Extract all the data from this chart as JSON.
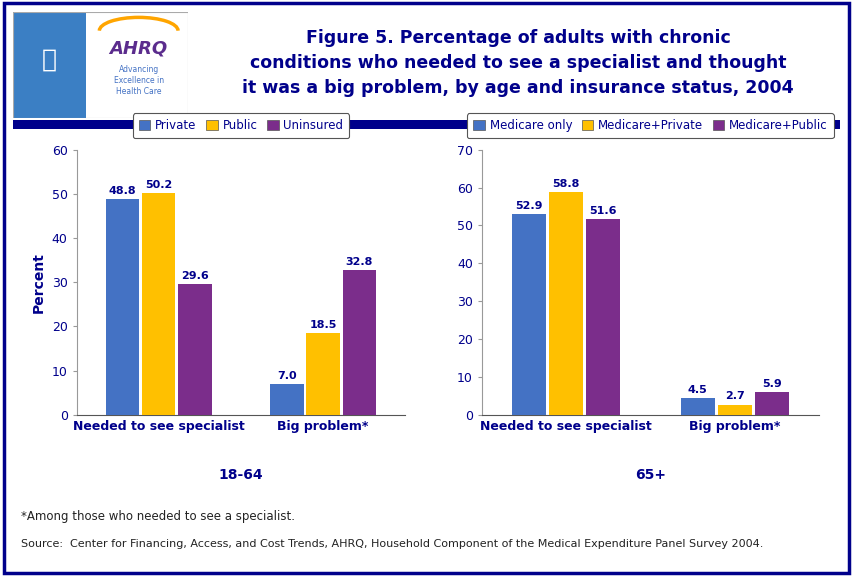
{
  "title": "Figure 5. Percentage of adults with chronic\nconditions who needed to see a specialist and thought\nit was a big problem, by age and insurance status, 2004",
  "title_color": "#00008B",
  "background_color": "#FFFFFF",
  "border_color": "#00008B",
  "divider_color": "#00008B",
  "left_chart": {
    "subtitle": "18-64",
    "ylabel": "Percent",
    "ylim": [
      0,
      60
    ],
    "yticks": [
      0,
      10,
      20,
      30,
      40,
      50,
      60
    ],
    "categories": [
      "Needed to see specialist",
      "Big problem*"
    ],
    "legend_labels": [
      "Private",
      "Public",
      "Uninsured"
    ],
    "bar_colors": [
      "#4472C4",
      "#FFC000",
      "#7B2D8B"
    ],
    "values": [
      [
        48.8,
        50.2,
        29.6
      ],
      [
        7.0,
        18.5,
        32.8
      ]
    ]
  },
  "right_chart": {
    "subtitle": "65+",
    "ylabel": "",
    "ylim": [
      0,
      70
    ],
    "yticks": [
      0,
      10,
      20,
      30,
      40,
      50,
      60,
      70
    ],
    "categories": [
      "Needed to see specialist",
      "Big problem*"
    ],
    "legend_labels": [
      "Medicare only",
      "Medicare+Private",
      "Medicare+Public"
    ],
    "bar_colors": [
      "#4472C4",
      "#FFC000",
      "#7B2D8B"
    ],
    "values": [
      [
        52.9,
        58.8,
        51.6
      ],
      [
        4.5,
        2.7,
        5.9
      ]
    ]
  },
  "footnote1": "*Among those who needed to see a specialist.",
  "footnote2": "Source:  Center for Financing, Access, and Cost Trends, AHRQ, Household Component of the Medical Expenditure Panel Survey 2004.",
  "value_fontsize": 8,
  "axis_label_color": "#00008B",
  "tick_label_color": "#00008B",
  "subtitle_color": "#00008B",
  "bar_width": 0.22
}
